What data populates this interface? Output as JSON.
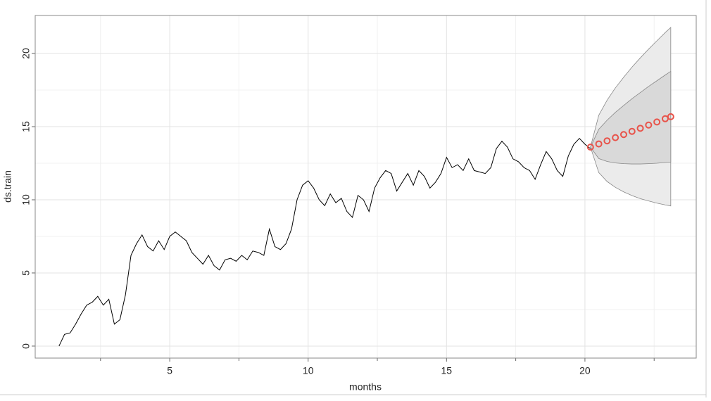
{
  "chart_data": {
    "type": "line",
    "xlabel": "months",
    "ylabel": "ds.train",
    "xlim": [
      0.14,
      24.02
    ],
    "ylim": [
      -0.82,
      22.6
    ],
    "xticks": [
      5,
      10,
      15,
      20
    ],
    "yticks": [
      0,
      5,
      10,
      15,
      20
    ],
    "x_minor_ticks": [
      2.5,
      7.5,
      12.5,
      17.5,
      22.5
    ],
    "y_minor_ticks": [
      2.5,
      7.5,
      12.5,
      17.5
    ],
    "grid": true,
    "x": [
      1.0,
      1.2,
      1.4,
      1.6,
      1.8,
      2.0,
      2.2,
      2.4,
      2.6,
      2.8,
      3.0,
      3.2,
      3.4,
      3.6,
      3.8,
      4.0,
      4.2,
      4.4,
      4.6,
      4.8,
      5.0,
      5.2,
      5.4,
      5.6,
      5.8,
      6.0,
      6.2,
      6.4,
      6.6,
      6.8,
      7.0,
      7.2,
      7.4,
      7.6,
      7.8,
      8.0,
      8.2,
      8.4,
      8.6,
      8.8,
      9.0,
      9.2,
      9.4,
      9.6,
      9.8,
      10.0,
      10.2,
      10.4,
      10.6,
      10.8,
      11.0,
      11.2,
      11.4,
      11.6,
      11.8,
      12.0,
      12.2,
      12.4,
      12.6,
      12.8,
      13.0,
      13.2,
      13.4,
      13.6,
      13.8,
      14.0,
      14.2,
      14.4,
      14.6,
      14.8,
      15.0,
      15.2,
      15.4,
      15.6,
      15.8,
      16.0,
      16.2,
      16.4,
      16.6,
      16.8,
      17.0,
      17.2,
      17.4,
      17.6,
      17.8,
      18.0,
      18.2,
      18.4,
      18.6,
      18.8,
      19.0,
      19.2,
      19.4,
      19.6,
      19.8,
      20.0,
      20.2
    ],
    "series": [
      {
        "color": "#000000",
        "values": [
          0,
          0.8,
          0.9,
          1.5,
          2.2,
          2.8,
          3.0,
          3.4,
          2.8,
          3.2,
          1.5,
          1.8,
          3.5,
          6.2,
          7.0,
          7.6,
          6.8,
          6.5,
          7.2,
          6.6,
          7.5,
          7.8,
          7.5,
          7.2,
          6.4,
          6.0,
          5.6,
          6.2,
          5.5,
          5.2,
          5.9,
          6.0,
          5.8,
          6.2,
          5.9,
          6.5,
          6.4,
          6.2,
          8.0,
          6.8,
          6.6,
          7.0,
          8.0,
          10.0,
          11.0,
          11.3,
          10.8,
          10.0,
          9.6,
          10.4,
          9.8,
          10.1,
          9.2,
          8.8,
          10.3,
          10.0,
          9.2,
          10.8,
          11.5,
          12.0,
          11.8,
          10.6,
          11.2,
          11.8,
          11.0,
          12.0,
          11.6,
          10.8,
          11.2,
          11.8,
          12.9,
          12.2,
          12.4,
          12.0,
          12.8,
          12.0,
          11.9,
          11.8,
          12.2,
          13.5,
          14.0,
          13.6,
          12.8,
          12.6,
          12.2,
          12.0,
          11.4,
          12.4,
          13.3,
          12.8,
          12.0,
          11.6,
          13.0,
          13.8,
          14.2,
          13.8,
          13.5
        ]
      }
    ],
    "forecast": {
      "x": [
        20.2,
        20.5,
        20.8,
        21.1,
        21.4,
        21.7,
        22.0,
        22.3,
        22.6,
        22.9,
        23.1
      ],
      "values": [
        13.6,
        13.82,
        14.03,
        14.25,
        14.46,
        14.68,
        14.89,
        15.11,
        15.32,
        15.54,
        15.68
      ],
      "color": "#e8534a",
      "intervals": [
        {
          "color": "#ebebeb",
          "lower": [
            13.6,
            11.86,
            11.25,
            10.85,
            10.54,
            10.29,
            10.08,
            9.92,
            9.77,
            9.65,
            9.58
          ],
          "upper": [
            13.6,
            15.78,
            16.81,
            17.65,
            18.38,
            19.07,
            19.7,
            20.3,
            20.87,
            21.43,
            21.78
          ]
        },
        {
          "color": "#d9d9d9",
          "lower": [
            13.6,
            12.82,
            12.62,
            12.52,
            12.47,
            12.45,
            12.45,
            12.47,
            12.5,
            12.55,
            12.58
          ],
          "upper": [
            13.6,
            14.82,
            15.44,
            15.98,
            16.45,
            16.91,
            17.33,
            17.75,
            18.14,
            18.53,
            18.78
          ]
        }
      ]
    }
  }
}
